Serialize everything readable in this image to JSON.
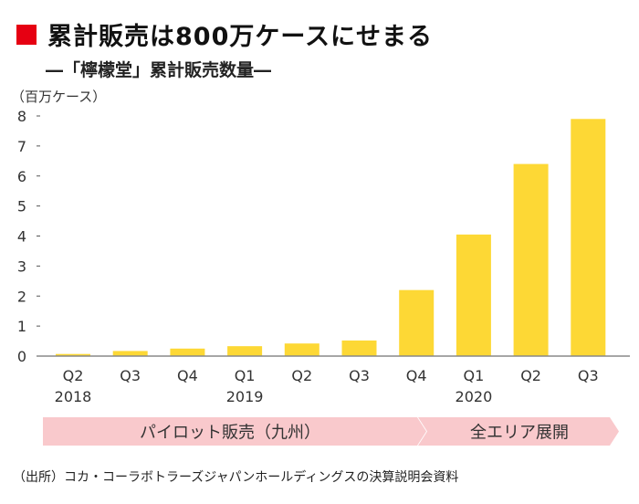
{
  "title": "累計販売は800万ケースにせまる",
  "subtitle": "―「檸檬堂」累計販売数量―",
  "source": "（出所）コカ・コーラボトラーズジャパンホールディングスの決算説明会資料",
  "colors": {
    "title_marker": "#e60012",
    "bar": "#fdd835",
    "banner": "#f9c9cc"
  },
  "chart_data": {
    "type": "bar",
    "ylabel": "（百万ケース）",
    "ylim": [
      0,
      8
    ],
    "yticks": [
      "0",
      "1",
      "2",
      "3",
      "4",
      "5",
      "6",
      "7",
      "8"
    ],
    "categories": [
      "Q2",
      "Q3",
      "Q4",
      "Q1",
      "Q2",
      "Q3",
      "Q4",
      "Q1",
      "Q2",
      "Q3"
    ],
    "year_labels": [
      "2018",
      "",
      "",
      "2019",
      "",
      "",
      "",
      "2020",
      "",
      ""
    ],
    "values": [
      0.07,
      0.17,
      0.25,
      0.33,
      0.42,
      0.52,
      2.2,
      4.05,
      6.4,
      7.9
    ],
    "grid": false
  },
  "phases": [
    {
      "label": "パイロット販売（九州）",
      "from": 0,
      "to": 6
    },
    {
      "label": "全エリア展開",
      "from": 7,
      "to": 9
    }
  ]
}
